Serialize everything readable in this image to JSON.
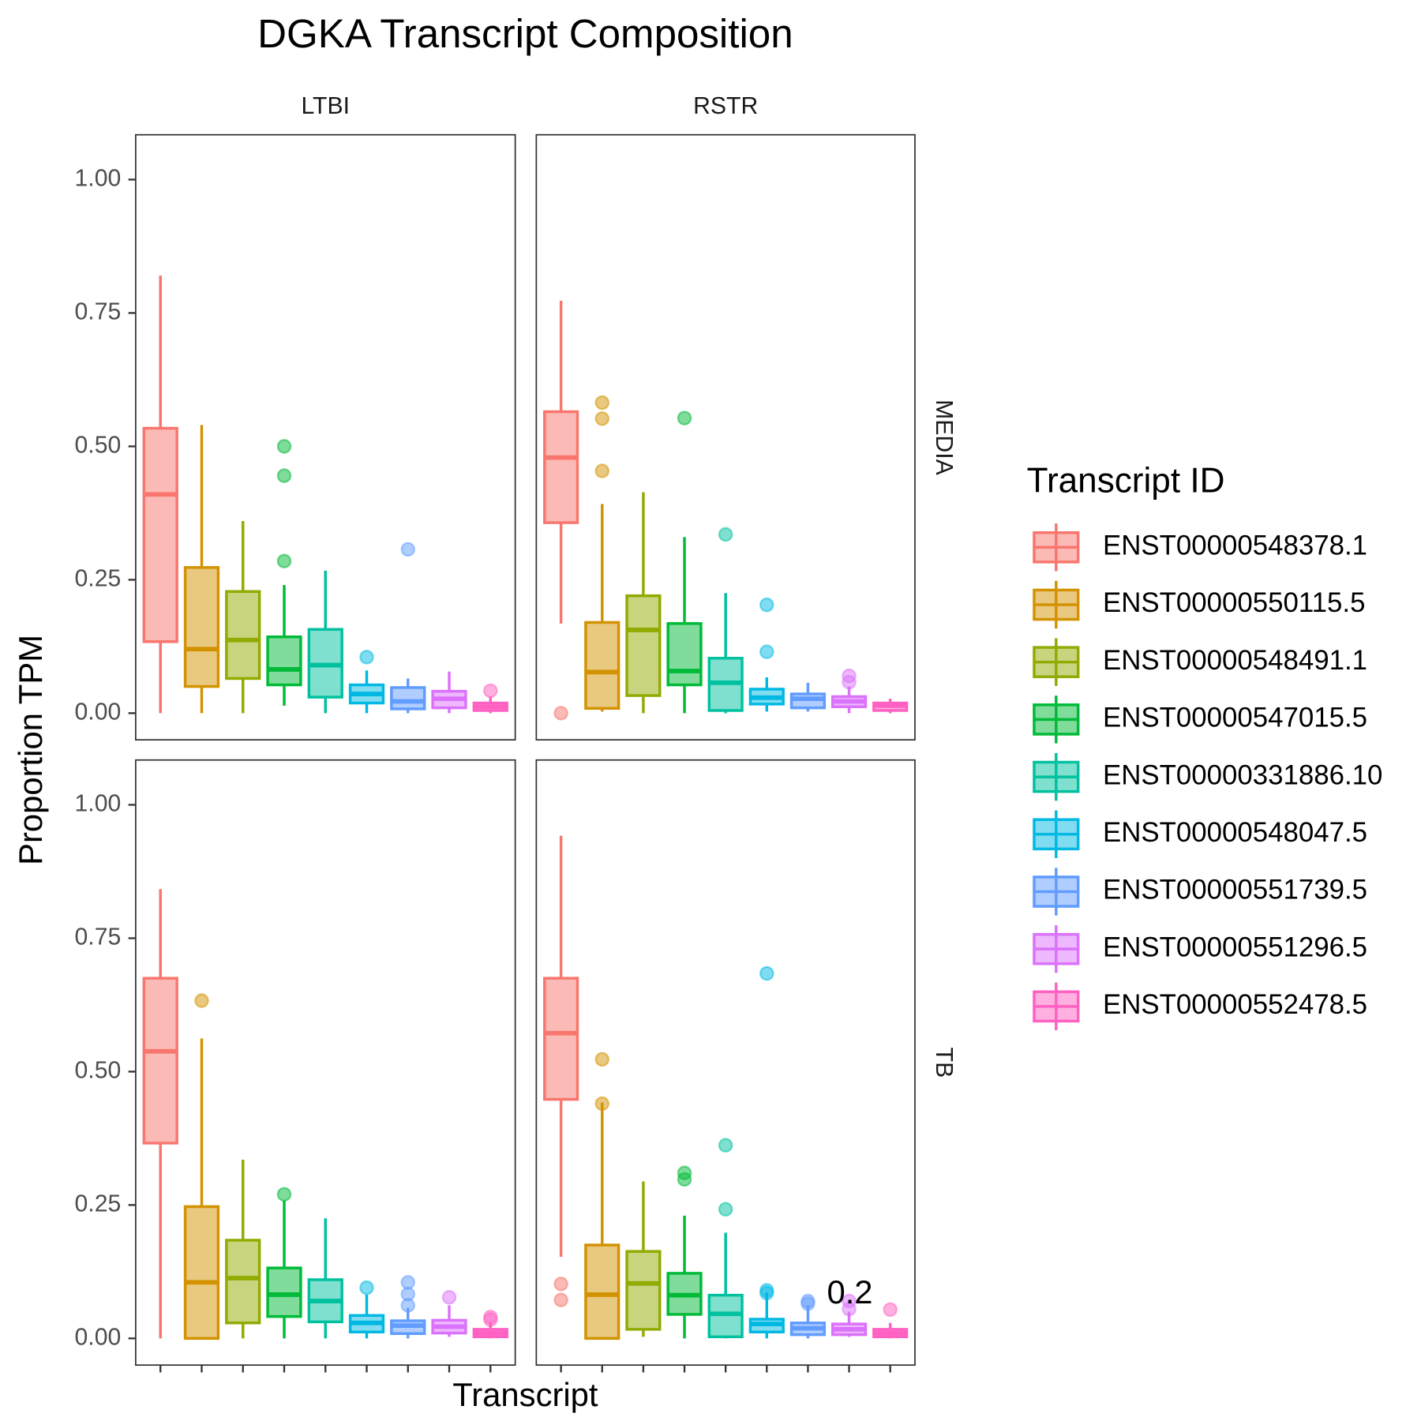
{
  "chart_data": {
    "type": "box",
    "title": "DGKA Transcript Composition",
    "x_label": "Transcript",
    "y_label": "Proportion TPM",
    "legend_title": "Transcript ID",
    "legend_position": "right",
    "facet_columns": [
      "LTBI",
      "RSTR"
    ],
    "facet_rows": [
      "MEDIA",
      "TB"
    ],
    "ylim": [
      -0.05,
      1.084
    ],
    "yticks": [
      {
        "value": 0,
        "label": "0.00"
      },
      {
        "value": 0.25,
        "label": "0.25"
      },
      {
        "value": 0.5,
        "label": "0.50"
      },
      {
        "value": 0.75,
        "label": "0.75"
      },
      {
        "value": 1,
        "label": "1.00"
      }
    ],
    "annotation": "0.2",
    "series": [
      {
        "name": "ENST00000548378.1",
        "color": "#F8766D",
        "values": [
          {
            "min": 0,
            "q1": 0.134,
            "median": 0.41,
            "q3": 0.534,
            "max": 0.82,
            "outliers": []
          },
          {
            "min": 0.168,
            "q1": 0.357,
            "median": 0.479,
            "q3": 0.565,
            "max": 0.773,
            "outliers": [
              0.0
            ]
          },
          {
            "min": 0,
            "q1": 0.366,
            "median": 0.538,
            "q3": 0.675,
            "max": 0.842,
            "outliers": []
          },
          {
            "min": 0.153,
            "q1": 0.448,
            "median": 0.572,
            "q3": 0.675,
            "max": 0.942,
            "outliers": [
              0.102,
              0.072
            ]
          }
        ]
      },
      {
        "name": "ENST00000550115.5",
        "color": "#D39200",
        "values": [
          {
            "min": 0,
            "q1": 0.05,
            "median": 0.12,
            "q3": 0.273,
            "max": 0.54,
            "outliers": []
          },
          {
            "min": 0.003,
            "q1": 0.009,
            "median": 0.077,
            "q3": 0.17,
            "max": 0.392,
            "outliers": [
              0.582,
              0.552,
              0.454
            ]
          },
          {
            "min": 0,
            "q1": 0,
            "median": 0.105,
            "q3": 0.247,
            "max": 0.562,
            "outliers": [
              0.633
            ]
          },
          {
            "min": 0,
            "q1": 0,
            "median": 0.082,
            "q3": 0.175,
            "max": 0.442,
            "outliers": [
              0.523,
              0.44
            ]
          }
        ]
      },
      {
        "name": "ENST00000548491.1",
        "color": "#93AA00",
        "values": [
          {
            "min": 0,
            "q1": 0.065,
            "median": 0.137,
            "q3": 0.228,
            "max": 0.36,
            "outliers": []
          },
          {
            "min": 0,
            "q1": 0.033,
            "median": 0.156,
            "q3": 0.22,
            "max": 0.414,
            "outliers": []
          },
          {
            "min": 0,
            "q1": 0.029,
            "median": 0.113,
            "q3": 0.184,
            "max": 0.335,
            "outliers": []
          },
          {
            "min": 0.003,
            "q1": 0.017,
            "median": 0.103,
            "q3": 0.163,
            "max": 0.294,
            "outliers": []
          }
        ]
      },
      {
        "name": "ENST00000547015.5",
        "color": "#00BA38",
        "values": [
          {
            "min": 0.014,
            "q1": 0.053,
            "median": 0.082,
            "q3": 0.143,
            "max": 0.24,
            "outliers": [
              0.5,
              0.445,
              0.285
            ]
          },
          {
            "min": 0,
            "q1": 0.053,
            "median": 0.079,
            "q3": 0.168,
            "max": 0.33,
            "outliers": [
              0.553
            ]
          },
          {
            "min": 0,
            "q1": 0.041,
            "median": 0.082,
            "q3": 0.132,
            "max": 0.258,
            "outliers": [
              0.27
            ]
          },
          {
            "min": 0,
            "q1": 0.045,
            "median": 0.081,
            "q3": 0.122,
            "max": 0.23,
            "outliers": [
              0.31,
              0.298
            ]
          }
        ]
      },
      {
        "name": "ENST00000331886.10",
        "color": "#00C19F",
        "values": [
          {
            "min": 0,
            "q1": 0.03,
            "median": 0.09,
            "q3": 0.157,
            "max": 0.267,
            "outliers": []
          },
          {
            "min": 0,
            "q1": 0.005,
            "median": 0.057,
            "q3": 0.103,
            "max": 0.225,
            "outliers": [
              0.335
            ]
          },
          {
            "min": 0,
            "q1": 0.031,
            "median": 0.07,
            "q3": 0.11,
            "max": 0.225,
            "outliers": []
          },
          {
            "min": 0,
            "q1": 0.003,
            "median": 0.046,
            "q3": 0.081,
            "max": 0.198,
            "outliers": [
              0.362,
              0.242
            ]
          }
        ]
      },
      {
        "name": "ENST00000548047.5",
        "color": "#00B9E3",
        "values": [
          {
            "min": 0,
            "q1": 0.019,
            "median": 0.036,
            "q3": 0.053,
            "max": 0.08,
            "outliers": [
              0.105
            ]
          },
          {
            "min": 0.003,
            "q1": 0.017,
            "median": 0.029,
            "q3": 0.045,
            "max": 0.067,
            "outliers": [
              0.203,
              0.115
            ]
          },
          {
            "min": 0,
            "q1": 0.012,
            "median": 0.029,
            "q3": 0.043,
            "max": 0.082,
            "outliers": [
              0.095
            ]
          },
          {
            "min": 0,
            "q1": 0.012,
            "median": 0.027,
            "q3": 0.036,
            "max": 0.086,
            "outliers": [
              0.684,
              0.09,
              0.085
            ]
          }
        ]
      },
      {
        "name": "ENST00000551739.5",
        "color": "#619CFF",
        "values": [
          {
            "min": 0,
            "q1": 0.008,
            "median": 0.022,
            "q3": 0.048,
            "max": 0.065,
            "outliers": [
              0.307
            ]
          },
          {
            "min": 0.003,
            "q1": 0.01,
            "median": 0.027,
            "q3": 0.036,
            "max": 0.057,
            "outliers": []
          },
          {
            "min": 0,
            "q1": 0.009,
            "median": 0.024,
            "q3": 0.033,
            "max": 0.057,
            "outliers": [
              0.105,
              0.083,
              0.062
            ]
          },
          {
            "min": 0,
            "q1": 0.007,
            "median": 0.019,
            "q3": 0.029,
            "max": 0.062,
            "outliers": [
              0.07,
              0.065
            ]
          }
        ]
      },
      {
        "name": "ENST00000551296.5",
        "color": "#DB72FB",
        "values": [
          {
            "min": 0,
            "q1": 0.01,
            "median": 0.027,
            "q3": 0.041,
            "max": 0.078,
            "outliers": []
          },
          {
            "min": 0,
            "q1": 0.012,
            "median": 0.022,
            "q3": 0.031,
            "max": 0.05,
            "outliers": [
              0.07,
              0.058
            ]
          },
          {
            "min": 0.003,
            "q1": 0.01,
            "median": 0.022,
            "q3": 0.034,
            "max": 0.062,
            "outliers": [
              0.077
            ]
          },
          {
            "min": 0.003,
            "q1": 0.007,
            "median": 0.017,
            "q3": 0.027,
            "max": 0.05,
            "outliers": [
              0.07,
              0.055
            ]
          }
        ]
      },
      {
        "name": "ENST00000552478.5",
        "color": "#FF61C3",
        "values": [
          {
            "min": 0,
            "q1": 0.005,
            "median": 0.012,
            "q3": 0.019,
            "max": 0.03,
            "outliers": [
              0.042
            ]
          },
          {
            "min": 0,
            "q1": 0.005,
            "median": 0.014,
            "q3": 0.019,
            "max": 0.027,
            "outliers": []
          },
          {
            "min": 0,
            "q1": 0.003,
            "median": 0.01,
            "q3": 0.017,
            "max": 0.03,
            "outliers": [
              0.04,
              0.035
            ]
          },
          {
            "min": 0,
            "q1": 0.003,
            "median": 0.01,
            "q3": 0.017,
            "max": 0.029,
            "outliers": [
              0.054
            ]
          }
        ]
      }
    ]
  }
}
